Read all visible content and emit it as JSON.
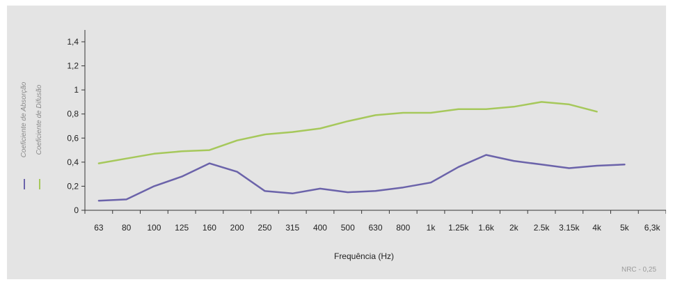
{
  "chart_data": {
    "type": "line",
    "categories": [
      "63",
      "80",
      "100",
      "125",
      "160",
      "200",
      "250",
      "315",
      "400",
      "500",
      "630",
      "800",
      "1k",
      "1.25k",
      "1.6k",
      "2k",
      "2.5k",
      "3.15k",
      "4k",
      "5k",
      "6,3k"
    ],
    "series": [
      {
        "name": "Coeficiente de Absorção",
        "color": "#6b63aa",
        "values": [
          0.08,
          0.09,
          0.2,
          0.28,
          0.39,
          0.32,
          0.16,
          0.14,
          0.18,
          0.15,
          0.16,
          0.19,
          0.23,
          0.36,
          0.46,
          0.41,
          0.38,
          0.35,
          0.37,
          0.38,
          null
        ]
      },
      {
        "name": "Coeficiente de Difusão",
        "color": "#a6c85b",
        "values": [
          0.39,
          0.43,
          0.47,
          0.49,
          0.5,
          0.58,
          0.63,
          0.65,
          0.68,
          0.74,
          0.79,
          0.81,
          0.81,
          0.84,
          0.84,
          0.86,
          0.9,
          0.88,
          0.82,
          null,
          null
        ]
      }
    ],
    "ylim": [
      0,
      1.4
    ],
    "yticks": [
      "0",
      "0,2",
      "0,4",
      "0,6",
      "0,8",
      "1",
      "1,2",
      "1,4"
    ],
    "xlabel": "Frequência (Hz)",
    "ylabel": "",
    "title": "",
    "legend_position": "left",
    "grid": false
  },
  "footer": {
    "note": "NRC - 0,25"
  }
}
